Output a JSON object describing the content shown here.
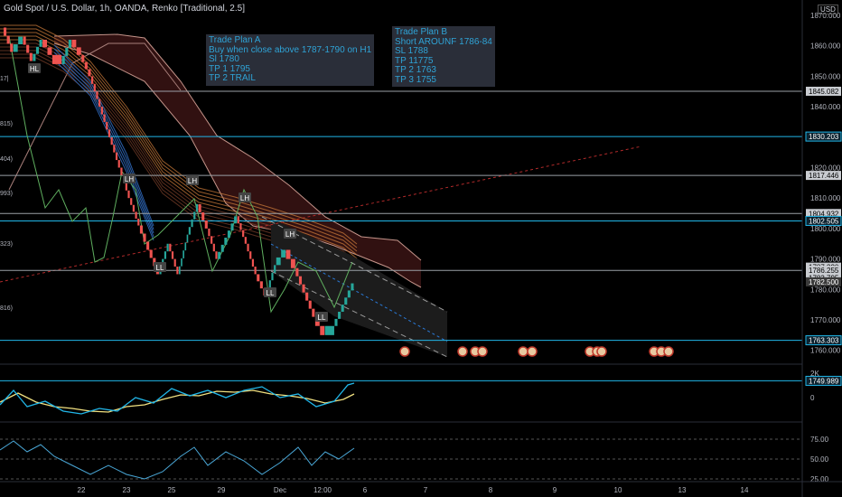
{
  "header": {
    "title": "Gold Spot / U.S. Dollar, 1h, OANDA, Renko [Traditional, 2.5]",
    "currency": "USD"
  },
  "colors": {
    "up": "#26a69a",
    "down": "#ef5350",
    "hline": "#9aa0a6",
    "cyan": "#21b6e8",
    "hull": "#5a1f1f",
    "panel": "#2a2e39"
  },
  "trade_plans": [
    {
      "lines": [
        "Trade Plan A",
        "Buy when close above 1787-1790 on H1",
        "Sl 1780",
        "TP 1 1795",
        "TP 2 TRAIL"
      ]
    },
    {
      "lines": [
        "Trade Plan B",
        "Short AROUNF 1786-84",
        "SL 1788",
        "TP 11775",
        "TP 2 1763",
        "TP 3 1755"
      ]
    }
  ],
  "chart_data": [
    {
      "type": "line",
      "title": "Gold Spot / U.S. Dollar, 1h, OANDA, Renko [Traditional, 2.5]",
      "x_ticks": [
        "22",
        "23",
        "25",
        "29",
        "Dec",
        "12:00",
        "6",
        "7",
        "8",
        "9",
        "10",
        "13",
        "14"
      ],
      "y_ticks": [
        "1870.000",
        "1860.000",
        "1850.000",
        "1840.000",
        "1830.000",
        "1820.000",
        "1810.000",
        "1800.000",
        "1790.000",
        "1780.000",
        "1770.000",
        "1760.000",
        "1750.000"
      ],
      "ylim": [
        1746,
        1876
      ],
      "price_path": [
        1866,
        1858,
        1863,
        1855,
        1862,
        1857,
        1854,
        1862,
        1857,
        1850,
        1840,
        1830,
        1820,
        1810,
        1801,
        1793,
        1785,
        1795,
        1785,
        1798,
        1808,
        1800,
        1790,
        1797,
        1804,
        1795,
        1785,
        1778,
        1788,
        1793,
        1787,
        1779,
        1771,
        1765,
        1768,
        1775,
        1782
      ],
      "last_price": 1782.5,
      "levels": [
        {
          "label": "1845.082",
          "value": 1845.082
        },
        {
          "label": "1830.203",
          "value": 1830.203
        },
        {
          "label": "1817.446",
          "value": 1817.446
        },
        {
          "label": "1804.932",
          "value": 1804.932
        },
        {
          "label": "1802.505",
          "value": 1802.505
        },
        {
          "label": "1787.320",
          "value": 1787.32
        },
        {
          "label": "1786.255",
          "value": 1786.255
        },
        {
          "label": "1783.795",
          "value": 1783.795
        },
        {
          "label": "1782.500",
          "value": 1782.5
        },
        {
          "label": "1763.303",
          "value": 1763.303
        },
        {
          "label": "1749.989",
          "value": 1749.989
        }
      ],
      "left_labels": [
        "17|",
        "815)",
        "404)",
        "993)",
        "323)",
        "816)"
      ],
      "pivots": [
        "HL",
        "LH",
        "LH",
        "LH",
        "LH",
        "LL",
        "LL",
        "LL",
        "LL"
      ],
      "grid": false
    },
    {
      "type": "line",
      "y_ticks": [
        "2K",
        "0"
      ]
    },
    {
      "type": "line",
      "y_ticks": [
        "75.00",
        "50.00",
        "25.00"
      ],
      "ylim": [
        20,
        80
      ]
    }
  ]
}
